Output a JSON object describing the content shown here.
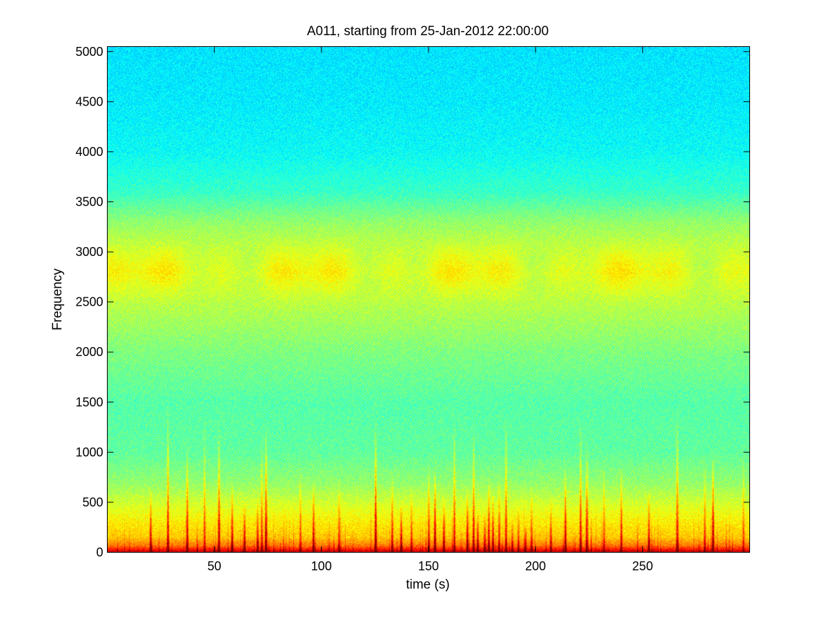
{
  "chart_data": {
    "type": "heatmap",
    "title": "A011, starting from 25-Jan-2012 22:00:00",
    "xlabel": "time (s)",
    "ylabel": "Frequency",
    "xlim": [
      0,
      300
    ],
    "ylim": [
      0,
      5050
    ],
    "xticks": [
      50,
      100,
      150,
      200,
      250
    ],
    "yticks": [
      0,
      500,
      1000,
      1500,
      2000,
      2500,
      3000,
      3500,
      4000,
      4500,
      5000
    ],
    "grid": false,
    "legend": "none",
    "colormap": "jet",
    "colors": {
      "low": "#00d8e0",
      "mid": "#80ff70",
      "high": "#ffff00",
      "peak": "#e82000"
    },
    "spectral_profile": {
      "frequency": [
        0,
        50,
        150,
        300,
        500,
        700,
        1000,
        1500,
        2000,
        2500,
        2800,
        3000,
        3300,
        3600,
        4000,
        4500,
        5050
      ],
      "relative_level": [
        0.93,
        0.78,
        0.68,
        0.64,
        0.58,
        0.52,
        0.47,
        0.46,
        0.5,
        0.56,
        0.61,
        0.58,
        0.52,
        0.43,
        0.38,
        0.36,
        0.35
      ]
    },
    "transient_events_s": [
      20,
      28,
      37,
      45,
      52,
      58,
      64,
      70,
      72,
      74,
      90,
      96,
      108,
      125,
      133,
      137,
      142,
      150,
      153,
      157,
      162,
      168,
      171,
      173,
      176,
      178,
      180,
      183,
      186,
      189,
      192,
      195,
      198,
      207,
      214,
      221,
      224,
      232,
      240,
      253,
      266,
      279,
      283,
      297
    ]
  }
}
